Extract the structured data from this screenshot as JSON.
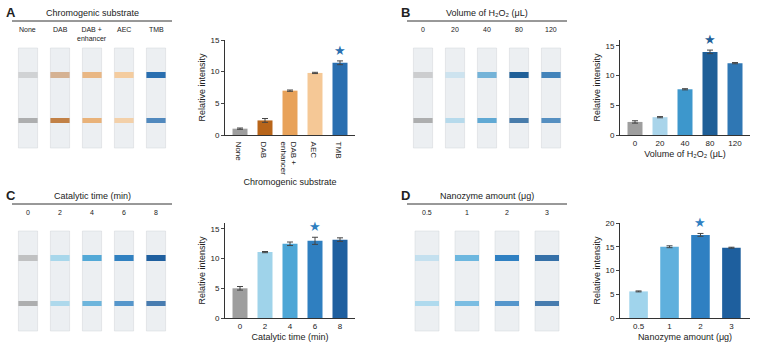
{
  "chart_data": [
    {
      "type": "bar",
      "panel": "A",
      "strip_title": "Chromogenic substrate",
      "categories": [
        "None",
        "DAB",
        "DAB + enhancer",
        "AEC",
        "TMB"
      ],
      "values": [
        1.0,
        2.3,
        7.0,
        9.8,
        11.4
      ],
      "error": [
        0.1,
        0.3,
        0.1,
        0.1,
        0.3
      ],
      "colors": [
        "#9e9e9e",
        "#b8651a",
        "#e8a25a",
        "#f5c896",
        "#2a6fb0"
      ],
      "x_label": "Chromogenic substrate",
      "y_label": "Relative intensity",
      "ylim": [
        0,
        15
      ],
      "yticks": [
        0,
        5,
        10,
        15
      ],
      "annotations": [
        {
          "category": "TMB",
          "text": "★"
        }
      ]
    },
    {
      "type": "bar",
      "panel": "B",
      "strip_title": "Volume of H₂O₂ (μL)",
      "categories": [
        "0",
        "20",
        "40",
        "80",
        "120"
      ],
      "values": [
        2.2,
        3.0,
        7.7,
        14.0,
        12.1
      ],
      "error": [
        0.2,
        0.1,
        0.1,
        0.3,
        0.1
      ],
      "colors": [
        "#9e9e9e",
        "#a9d4ea",
        "#3d97cc",
        "#1f5f98",
        "#2f77b4"
      ],
      "x_label": "Volume of H₂O₂ (μL)",
      "y_label": "Relative intensity",
      "ylim": [
        0,
        16
      ],
      "yticks": [
        0,
        5,
        10,
        15
      ],
      "annotations": [
        {
          "category": "80",
          "text": "★"
        }
      ]
    },
    {
      "type": "bar",
      "panel": "C",
      "strip_title": "Catalytic time (min)",
      "categories": [
        "0",
        "2",
        "4",
        "6",
        "8"
      ],
      "values": [
        5.0,
        11.1,
        12.5,
        13.0,
        13.2
      ],
      "error": [
        0.3,
        0.1,
        0.3,
        0.6,
        0.3
      ],
      "colors": [
        "#9e9e9e",
        "#9fd3ea",
        "#4da6d6",
        "#2f7fc0",
        "#1f5f9f"
      ],
      "x_label": "Catalytic time (min)",
      "y_label": "Relative intensity",
      "ylim": [
        0,
        16
      ],
      "yticks": [
        0,
        5,
        10,
        15
      ],
      "annotations": [
        {
          "category": "6",
          "text": "★"
        }
      ]
    },
    {
      "type": "bar",
      "panel": "D",
      "strip_title": "Nanozyme amount (μg)",
      "categories": [
        "0.5",
        "1",
        "2",
        "3"
      ],
      "values": [
        5.6,
        15.0,
        17.5,
        14.8
      ],
      "error": [
        0.1,
        0.2,
        0.3,
        0.1
      ],
      "colors": [
        "#a0d4ec",
        "#5fb0dd",
        "#2f80c2",
        "#1e5f9e"
      ],
      "x_label": "Nanozyme amount (μg)",
      "y_label": "Relative intensity",
      "ylim": [
        0,
        20
      ],
      "yticks": [
        0,
        5,
        10,
        15,
        20
      ],
      "annotations": [
        {
          "category": "2",
          "text": "★"
        }
      ]
    }
  ]
}
